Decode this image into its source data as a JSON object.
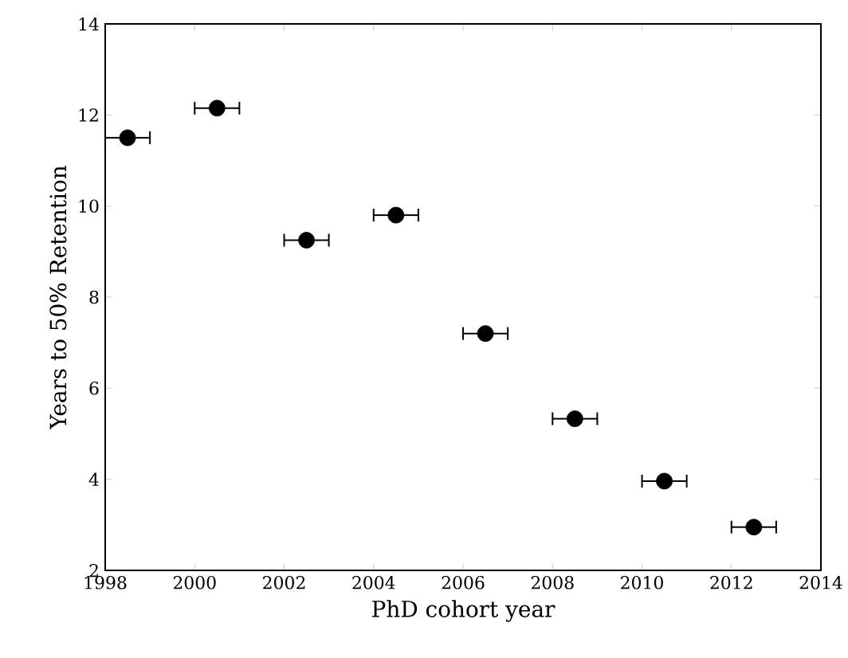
{
  "chart_data": {
    "type": "scatter",
    "xlabel": "PhD cohort year",
    "ylabel": "Years to 50% Retention",
    "x": [
      1998.5,
      2000.5,
      2002.5,
      2004.5,
      2006.5,
      2008.5,
      2010.5,
      2012.5
    ],
    "values": [
      11.5,
      12.15,
      9.25,
      9.8,
      7.2,
      5.33,
      3.96,
      2.95
    ],
    "xerrors": [
      0.5,
      0.5,
      0.5,
      0.5,
      0.5,
      0.5,
      0.5,
      0.5
    ],
    "color": "#000000",
    "marker": "circle",
    "xlim": [
      1998,
      2014
    ],
    "xticks": [
      1998,
      2000,
      2002,
      2004,
      2006,
      2008,
      2010,
      2012,
      2014
    ],
    "ylim": [
      2,
      14
    ],
    "yticks": [
      2,
      4,
      6,
      8,
      10,
      12,
      14
    ],
    "grid": false
  }
}
